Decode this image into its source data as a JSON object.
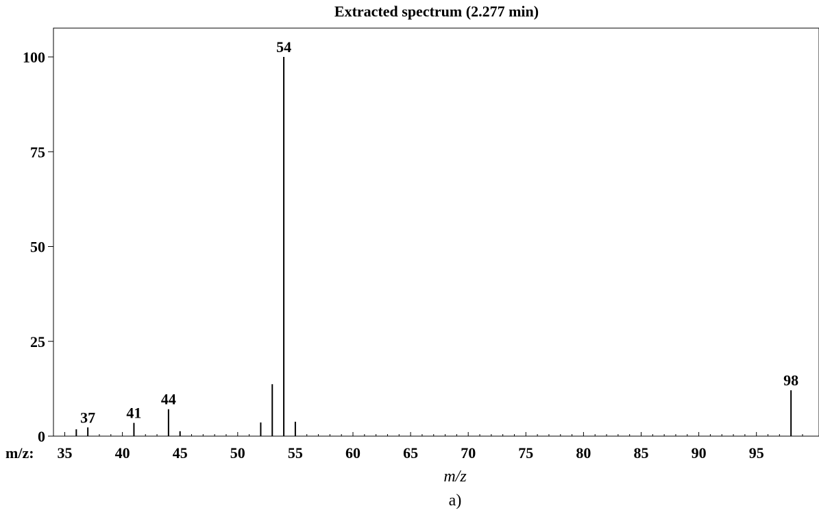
{
  "chart_data": {
    "type": "bar",
    "title": "Extracted spectrum (2.277 min)",
    "xlabel": "m/z",
    "x_axis_prefix": "m/z:",
    "ylabel": "",
    "caption": "a)",
    "xlim": [
      34,
      100
    ],
    "ylim": [
      0,
      107
    ],
    "grid": false,
    "x_ticks": [
      35,
      40,
      45,
      50,
      55,
      60,
      65,
      70,
      75,
      80,
      85,
      90,
      95
    ],
    "y_ticks": [
      0,
      25,
      50,
      75,
      100
    ],
    "peaks": [
      {
        "mz": 36,
        "intensity": 1.8
      },
      {
        "mz": 37,
        "intensity": 2.3,
        "label": "37"
      },
      {
        "mz": 41,
        "intensity": 3.5,
        "label": "41"
      },
      {
        "mz": 44,
        "intensity": 7.1,
        "label": "44"
      },
      {
        "mz": 45,
        "intensity": 1.3
      },
      {
        "mz": 52,
        "intensity": 3.6
      },
      {
        "mz": 53,
        "intensity": 13.7
      },
      {
        "mz": 54,
        "intensity": 100,
        "label": "54"
      },
      {
        "mz": 55,
        "intensity": 3.8
      },
      {
        "mz": 98,
        "intensity": 12.1,
        "label": "98"
      }
    ]
  }
}
